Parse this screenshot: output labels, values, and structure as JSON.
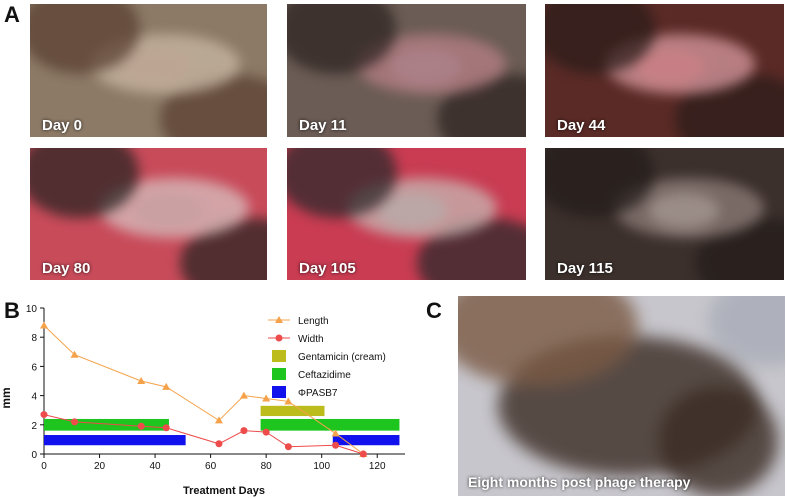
{
  "panels": {
    "a": "A",
    "b": "B",
    "c": "C"
  },
  "photos": [
    {
      "caption": "Day 0",
      "palette": [
        "#8c7a66",
        "#5b4032",
        "#c9b8a4",
        "#9d6d63"
      ]
    },
    {
      "caption": "Day 11",
      "palette": [
        "#6b5c55",
        "#2f2522",
        "#b77f86",
        "#8d8a94"
      ]
    },
    {
      "caption": "Day 44",
      "palette": [
        "#5a2a26",
        "#2c1d1a",
        "#d79aa0",
        "#a3333a"
      ]
    },
    {
      "caption": "Day 80",
      "palette": [
        "#c84b5a",
        "#2b2523",
        "#d7c1c0",
        "#9d3c46"
      ]
    },
    {
      "caption": "Day 105",
      "palette": [
        "#c93c52",
        "#2d2a2c",
        "#c7b7b3",
        "#8d8589"
      ]
    },
    {
      "caption": "Day 115",
      "palette": [
        "#3c302c",
        "#241d1b",
        "#8e7e79",
        "#d8d0ca"
      ]
    }
  ],
  "photo_c": {
    "caption": "Eight months post phage therapy",
    "palette": [
      "#c7c6cc",
      "#3b2c24",
      "#7b5a44",
      "#a9adb8"
    ]
  },
  "chart_data": {
    "type": "line",
    "xlabel": "Treatment Days",
    "ylabel": "mm",
    "xlim": [
      0,
      130
    ],
    "ylim": [
      0,
      10
    ],
    "xticks": [
      0,
      20,
      40,
      60,
      80,
      100,
      120
    ],
    "yticks": [
      0,
      2,
      4,
      6,
      8,
      10
    ],
    "series": [
      {
        "name": "Length",
        "color": "#f5a24a",
        "marker": "triangle",
        "x": [
          0,
          11,
          35,
          44,
          63,
          72,
          80,
          88,
          105,
          115
        ],
        "y": [
          8.8,
          6.8,
          5.0,
          4.6,
          2.3,
          4.0,
          3.8,
          3.6,
          1.4,
          0
        ]
      },
      {
        "name": "Width",
        "color": "#ee4b4b",
        "marker": "circle",
        "x": [
          0,
          11,
          35,
          44,
          63,
          72,
          80,
          88,
          105,
          115
        ],
        "y": [
          2.7,
          2.2,
          1.9,
          1.8,
          0.7,
          1.6,
          1.5,
          0.5,
          0.6,
          0
        ]
      }
    ],
    "bars": [
      {
        "name": "Gentamicin (cream)",
        "color": "#bcbc1c",
        "segments": [
          [
            78,
            101
          ]
        ],
        "y": [
          2.6,
          3.3
        ]
      },
      {
        "name": "Ceftazidime",
        "color": "#1fc51f",
        "segments": [
          [
            0,
            45
          ],
          [
            78,
            128
          ]
        ],
        "y": [
          1.6,
          2.4
        ]
      },
      {
        "name": "ΦPASB7",
        "color": "#1111ee",
        "segments": [
          [
            0,
            51
          ],
          [
            104,
            128
          ]
        ],
        "y": [
          0.6,
          1.3
        ]
      }
    ]
  }
}
